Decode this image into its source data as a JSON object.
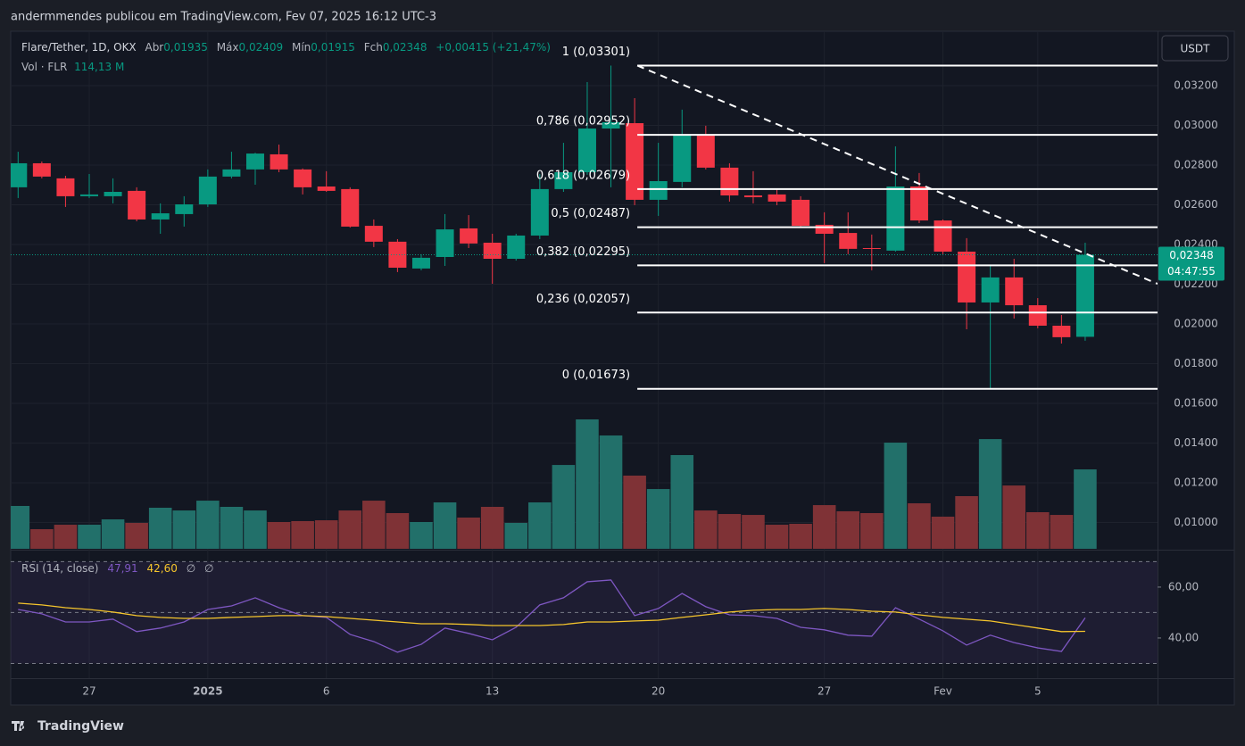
{
  "header": {
    "publisher": "andermmendes publicou em TradingView.com, Fev 07, 2025 16:12 UTC-3"
  },
  "chart_data": [
    {
      "type": "candlestick",
      "title": "Flare/Tether, 1D, OKX",
      "legend": {
        "open_label": "Abr",
        "high_label": "Máx",
        "low_label": "Mín",
        "close_label": "Fch",
        "change": "+0,00415 (+21,47%)"
      },
      "ohlc_labels": [
        "0,01935",
        "0,02409",
        "0,01915",
        "0,02348"
      ],
      "currency": "USDT",
      "categories": [
        null,
        null,
        null,
        "27",
        null,
        null,
        null,
        null,
        "2025",
        null,
        null,
        null,
        null,
        "6",
        null,
        null,
        null,
        null,
        null,
        null,
        "13",
        null,
        null,
        null,
        null,
        null,
        null,
        "20",
        null,
        null,
        null,
        null,
        null,
        null,
        "27",
        null,
        null,
        null,
        null,
        "Fev",
        null,
        null,
        null,
        "5",
        null,
        null
      ],
      "open": [
        0.02688,
        0.02809,
        0.02733,
        0.02643,
        0.02643,
        0.0267,
        0.02526,
        0.02553,
        0.02602,
        0.02742,
        0.02778,
        0.02854,
        0.02778,
        0.02692,
        0.02679,
        0.02494,
        0.02414,
        0.02279,
        0.02337,
        0.02481,
        0.02409,
        0.02328,
        0.02445,
        0.02679,
        0.02764,
        0.02984,
        0.03011,
        0.02625,
        0.02715,
        0.02948,
        0.02787,
        0.02647,
        0.02652,
        0.02625,
        0.02499,
        0.02458,
        0.02382,
        0.02369,
        0.02692,
        0.02521,
        0.02364,
        0.02108,
        0.02234,
        0.02094,
        0.01991,
        0.01935
      ],
      "high": [
        0.02867,
        0.02818,
        0.02746,
        0.02755,
        0.02733,
        0.02688,
        0.02607,
        0.02643,
        0.02778,
        0.02867,
        0.02862,
        0.02903,
        0.02783,
        0.02769,
        0.02688,
        0.02526,
        0.02427,
        0.02351,
        0.02553,
        0.02548,
        0.02454,
        0.02454,
        0.02755,
        0.02912,
        0.03218,
        0.03301,
        0.03137,
        0.02912,
        0.03079,
        0.02998,
        0.02809,
        0.02769,
        0.02679,
        0.02643,
        0.02562,
        0.02562,
        0.0245,
        0.02894,
        0.0276,
        0.02526,
        0.02432,
        0.02292,
        0.02328,
        0.0213,
        0.02045,
        0.02409
      ],
      "low": [
        0.02634,
        0.02733,
        0.02589,
        0.02634,
        0.02607,
        0.02517,
        0.02454,
        0.0249,
        0.02589,
        0.02733,
        0.02701,
        0.02764,
        0.02652,
        0.02665,
        0.02485,
        0.02387,
        0.02261,
        0.0227,
        0.02292,
        0.02382,
        0.02202,
        0.02319,
        0.02427,
        0.02665,
        0.02751,
        0.02688,
        0.02598,
        0.02544,
        0.02688,
        0.02778,
        0.02616,
        0.02607,
        0.02598,
        0.02485,
        0.02306,
        0.02351,
        0.0227,
        0.02364,
        0.02508,
        0.02351,
        0.01973,
        0.01673,
        0.02027,
        0.01978,
        0.01901,
        0.01915
      ],
      "close": [
        0.02809,
        0.02742,
        0.02643,
        0.02652,
        0.02665,
        0.02526,
        0.02557,
        0.02602,
        0.02742,
        0.02778,
        0.02858,
        0.02778,
        0.02688,
        0.0267,
        0.0249,
        0.02414,
        0.02283,
        0.02333,
        0.02476,
        0.02405,
        0.02328,
        0.02445,
        0.02679,
        0.02764,
        0.02984,
        0.03016,
        0.02625,
        0.02719,
        0.02953,
        0.02787,
        0.02647,
        0.02638,
        0.02616,
        0.02494,
        0.02454,
        0.02378,
        0.02378,
        0.02692,
        0.02521,
        0.02364,
        0.02108,
        0.02234,
        0.02094,
        0.01991,
        0.01933,
        0.02348
      ],
      "up_color": "#089981",
      "down_color": "#f23645",
      "ylim": [
        0.008674,
        0.03474
      ],
      "yticks": [
        {
          "value": 0.01,
          "label": "0,01000"
        },
        {
          "value": 0.012,
          "label": "0,01200"
        },
        {
          "value": 0.014,
          "label": "0,01400"
        },
        {
          "value": 0.016,
          "label": "0,01600"
        },
        {
          "value": 0.018,
          "label": "0,01800"
        },
        {
          "value": 0.02,
          "label": "0,02000"
        },
        {
          "value": 0.022,
          "label": "0,02200"
        },
        {
          "value": 0.024,
          "label": "0,02400"
        },
        {
          "value": 0.026,
          "label": "0,02600"
        },
        {
          "value": 0.028,
          "label": "0,02800"
        },
        {
          "value": 0.03,
          "label": "0,03000"
        },
        {
          "value": 0.032,
          "label": "0,03200"
        }
      ],
      "grid": true,
      "fib_levels": [
        {
          "value": 0.03301,
          "label": "1 (0,03301)"
        },
        {
          "value": 0.02952,
          "label": "0,786 (0,02952)"
        },
        {
          "value": 0.02679,
          "label": "0,618 (0,02679)"
        },
        {
          "value": 0.02487,
          "label": "0,5 (0,02487)"
        },
        {
          "value": 0.02295,
          "label": "0,382 (0,02295)"
        },
        {
          "value": 0.02057,
          "label": "0,236 (0,02057)"
        },
        {
          "value": 0.01673,
          "label": "0 (0,01673)"
        }
      ],
      "trendline": [
        0.03301,
        0.02202
      ],
      "last_price_label": {
        "value": 0.02348,
        "label": "0,02348"
      },
      "countdown": "04:47:55"
    },
    {
      "type": "bar",
      "title": "Vol · FLR",
      "last_value_label": "114,13 M",
      "values": [
        61.6,
        28.2,
        34.6,
        34.6,
        42.3,
        37.2,
        59.0,
        55.1,
        69.2,
        60.3,
        55.1,
        38.5,
        39.8,
        41.0,
        55.1,
        69.2,
        51.3,
        38.5,
        66.7,
        44.9,
        60.3,
        37.2,
        66.7,
        120.5,
        186.0,
        162.9,
        105.2,
        85.9,
        134.7,
        55.1,
        50.0,
        48.7,
        34.6,
        35.9,
        62.8,
        53.9,
        51.3,
        152.6,
        65.4,
        46.2,
        75.7,
        157.7,
        91.0,
        52.6,
        48.7,
        114.13
      ],
      "up_color": "#22706a",
      "down_color": "#7f3236"
    },
    {
      "type": "line",
      "title": "RSI (14, close)",
      "na_labels": [
        "∅",
        "∅"
      ],
      "series": [
        {
          "color": "#7e57c2",
          "value_label": "47,91",
          "values": [
            51.2,
            49.5,
            46.3,
            46.3,
            47.4,
            42.5,
            43.9,
            46.3,
            51.2,
            52.6,
            55.8,
            51.9,
            48.8,
            48.1,
            41.4,
            38.6,
            34.4,
            37.5,
            43.9,
            41.8,
            39.3,
            44.2,
            53.0,
            55.8,
            62.1,
            62.8,
            48.8,
            51.6,
            57.5,
            52.3,
            49.1,
            48.8,
            47.7,
            44.2,
            43.2,
            41.1,
            40.7,
            51.9,
            47.4,
            42.8,
            37.2,
            41.1,
            38.2,
            36.1,
            34.7,
            47.91
          ]
        },
        {
          "color": "#f5c52c",
          "value_label": "42,60",
          "values": [
            53.7,
            53.0,
            51.9,
            51.2,
            50.2,
            48.8,
            48.1,
            47.7,
            47.7,
            48.1,
            48.4,
            48.8,
            48.8,
            48.4,
            47.7,
            47.0,
            46.3,
            45.6,
            45.6,
            45.3,
            44.9,
            44.9,
            44.9,
            45.3,
            46.3,
            46.3,
            46.7,
            47.0,
            48.1,
            49.1,
            50.2,
            50.9,
            51.2,
            51.2,
            51.6,
            51.2,
            50.5,
            50.2,
            49.1,
            48.1,
            47.4,
            46.7,
            45.3,
            43.9,
            42.5,
            42.6
          ]
        }
      ],
      "band_levels": [
        30,
        50,
        70
      ],
      "ylim": [
        24.2,
        73.3
      ],
      "yticks": [
        {
          "value": 40,
          "label": "40,00"
        },
        {
          "value": 60,
          "label": "60,00"
        }
      ]
    }
  ],
  "footer": {
    "brand": "TradingView"
  }
}
